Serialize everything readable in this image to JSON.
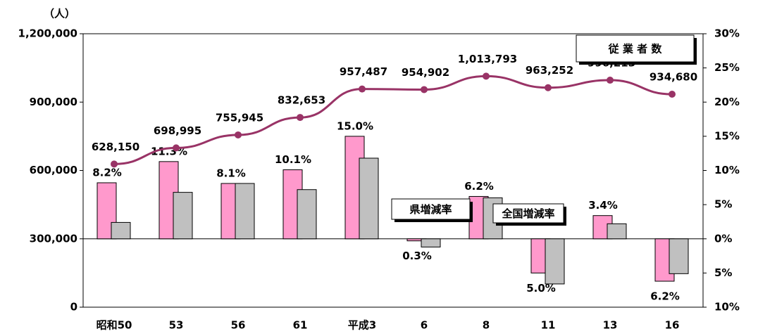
{
  "chart_data": {
    "type": "bar",
    "axis_label": "（人）",
    "categories": [
      "昭和50",
      "53",
      "56",
      "61",
      "平成3",
      "6",
      "8",
      "11",
      "13",
      "16"
    ],
    "ylim": [
      0,
      1200000
    ],
    "yticks": [
      0,
      {
        "value": 300000,
        "label": "300,000"
      },
      {
        "value": 600000,
        "label": "600,000"
      },
      {
        "value": 900000,
        "label": "900,000"
      },
      {
        "value": 1200000,
        "label": "1,200,000"
      }
    ],
    "y2lim": [
      -10,
      30
    ],
    "y2ticks": [
      {
        "value": -10,
        "label": "10%"
      },
      {
        "value": -5,
        "label": "5%"
      },
      {
        "value": 0,
        "label": "0%"
      },
      {
        "value": 5,
        "label": "5%"
      },
      {
        "value": 10,
        "label": "10%"
      },
      {
        "value": 15,
        "label": "15%"
      },
      {
        "value": 20,
        "label": "20%"
      },
      {
        "value": 25,
        "label": "25%"
      },
      {
        "value": 30,
        "label": "30%"
      }
    ],
    "series": [
      {
        "name": "従 業 者 数",
        "type": "line",
        "axis": "y",
        "color": "#993366",
        "values": [
          628150,
          698995,
          755945,
          832653,
          957487,
          954902,
          1013793,
          963252,
          996213,
          934680
        ],
        "value_labels": [
          "628,150",
          "698,995",
          "755,945",
          "832,653",
          "957,487",
          "954,902",
          "1,013,793",
          "963,252",
          "996,213",
          "934,680"
        ]
      },
      {
        "name": "県増減率",
        "type": "bar",
        "axis": "y2",
        "color": "#ff99cc",
        "values": [
          8.2,
          11.3,
          8.1,
          10.1,
          15.0,
          -0.3,
          6.2,
          -5.0,
          3.4,
          -6.2
        ],
        "value_labels": [
          "8.2%",
          "11.3%",
          "8.1%",
          "10.1%",
          "15.0%",
          "0.3%",
          "6.2%",
          "5.0%",
          "3.4%",
          "6.2%"
        ]
      },
      {
        "name": "全国増減率",
        "type": "bar",
        "axis": "y2",
        "color": "#c0c0c0",
        "values": [
          2.4,
          6.8,
          8.1,
          7.2,
          11.8,
          -1.2,
          6.0,
          -6.6,
          2.2,
          -5.1
        ]
      }
    ]
  }
}
